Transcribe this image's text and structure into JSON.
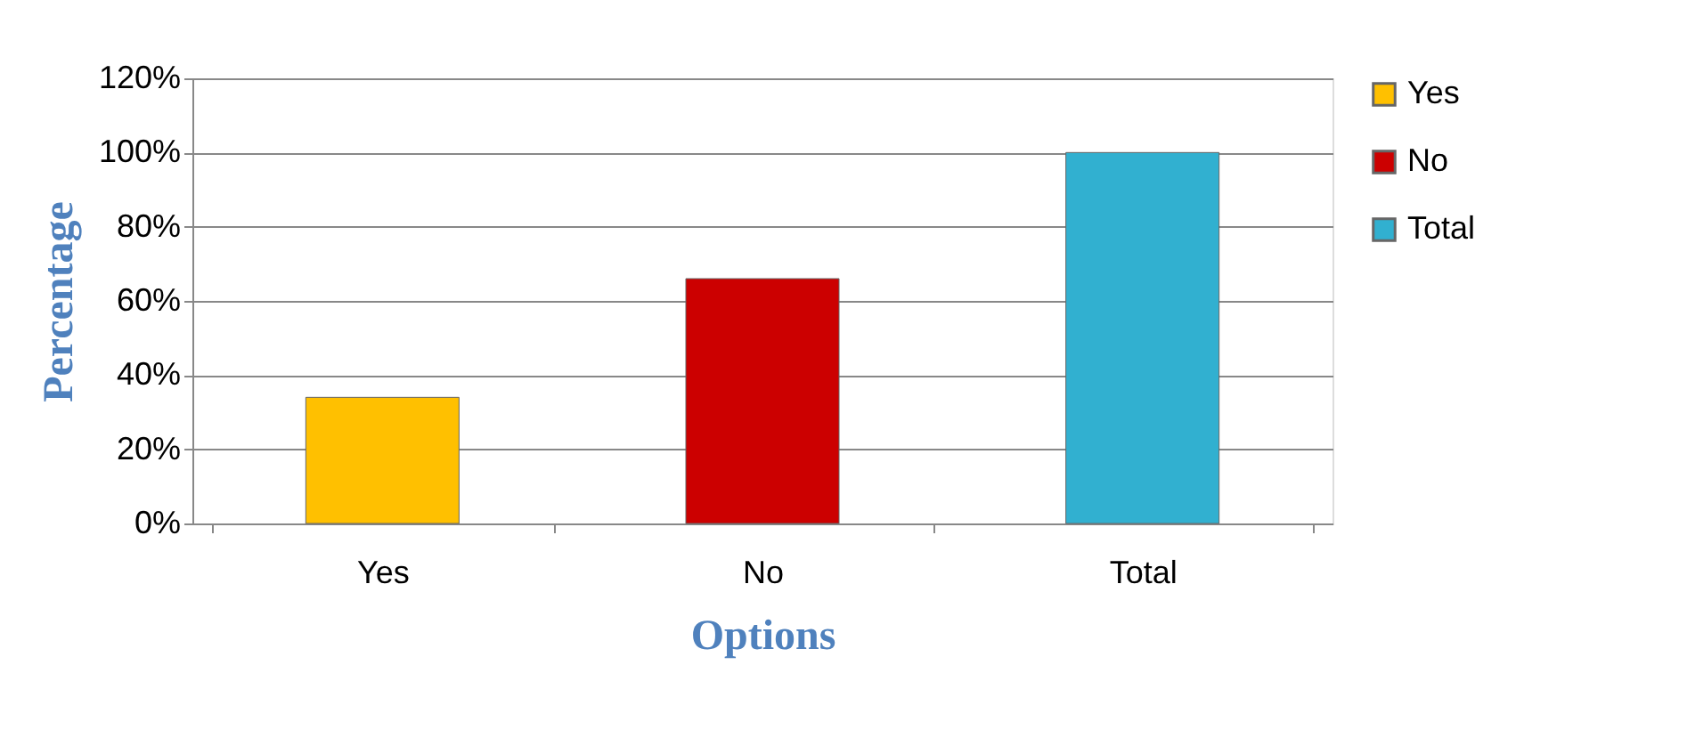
{
  "chart_data": {
    "type": "bar",
    "xlabel": "Options",
    "ylabel": "Percentage",
    "categories": [
      "Yes",
      "No",
      "Total"
    ],
    "series": [
      {
        "name": "Yes",
        "color": "#ffc000",
        "values": [
          34,
          null,
          null
        ]
      },
      {
        "name": "No",
        "color": "#cc0000",
        "values": [
          null,
          66,
          null
        ]
      },
      {
        "name": "Total",
        "color": "#31b0d0",
        "values": [
          null,
          null,
          100
        ]
      }
    ],
    "ylim": [
      0,
      120
    ],
    "yticks": [
      {
        "value": 0,
        "label": "0%"
      },
      {
        "value": 20,
        "label": "20%"
      },
      {
        "value": 40,
        "label": "40%"
      },
      {
        "value": 60,
        "label": "60%"
      },
      {
        "value": 80,
        "label": "80%"
      },
      {
        "value": 100,
        "label": "100%"
      },
      {
        "value": 120,
        "label": "120%"
      }
    ],
    "grid": "y",
    "legend": "right"
  }
}
